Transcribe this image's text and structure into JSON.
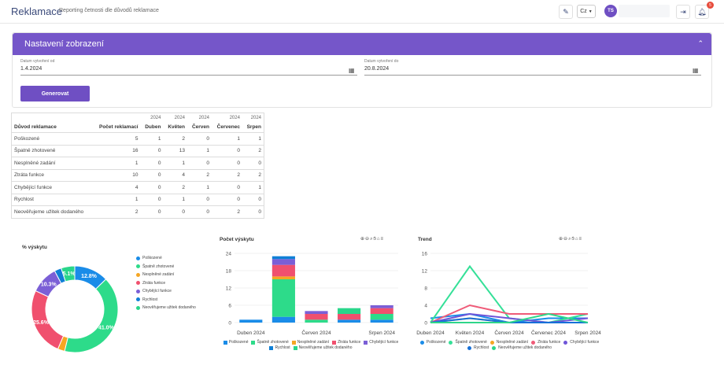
{
  "header": {
    "title": "Reklamace",
    "subtitle": "Reporting četnosti dle důvodů reklamace",
    "language": "Cz",
    "avatar_initials": "TS",
    "notification_count": "5"
  },
  "settings": {
    "title": "Nastavení zobrazení",
    "date_from_label": "Datum vytvoření od",
    "date_from_value": "1.4.2024",
    "date_to_label": "Datum vytvoření do",
    "date_to_value": "20.8.2024",
    "generate_label": "Generovat"
  },
  "table": {
    "headers": {
      "reason": "Důvod reklamace",
      "count": "Počet reklamací",
      "year": "2024",
      "months": [
        "Duben",
        "Květen",
        "Červen",
        "Červenec",
        "Srpen"
      ]
    },
    "rows": [
      {
        "reason": "Poškozené",
        "count": "5",
        "m": [
          "1",
          "2",
          "0",
          "1",
          "1"
        ]
      },
      {
        "reason": "Špatně zhotovené",
        "count": "16",
        "m": [
          "0",
          "13",
          "1",
          "0",
          "2"
        ]
      },
      {
        "reason": "Nesplněné zadání",
        "count": "1",
        "m": [
          "0",
          "1",
          "0",
          "0",
          "0"
        ]
      },
      {
        "reason": "Ztráta funkce",
        "count": "10",
        "m": [
          "0",
          "4",
          "2",
          "2",
          "2"
        ]
      },
      {
        "reason": "Chybějící funkce",
        "count": "4",
        "m": [
          "0",
          "2",
          "1",
          "0",
          "1"
        ]
      },
      {
        "reason": "Rychlost",
        "count": "1",
        "m": [
          "0",
          "1",
          "0",
          "0",
          "0"
        ]
      },
      {
        "reason": "Neověřujeme užitek dodaného",
        "count": "2",
        "m": [
          "0",
          "0",
          "0",
          "2",
          "0"
        ]
      }
    ]
  },
  "colors": {
    "accent": "#7556c9",
    "series": [
      "#1a8ce8",
      "#2ddb8a",
      "#f5a623",
      "#f0506e",
      "#7b5fd6",
      "#0f7fd6",
      "#29d68a"
    ]
  },
  "chart_data": [
    {
      "type": "pie",
      "title": "% výskytu",
      "categories": [
        "Poškozené",
        "Špatně zhotovené",
        "Nesplněné zadání",
        "Ztráta funkce",
        "Chybějící funkce",
        "Rychlost",
        "Neověřujeme užitek dodaného"
      ],
      "values": [
        12.8,
        41.0,
        2.6,
        25.6,
        10.3,
        2.6,
        5.1
      ],
      "data_labels": [
        "12.8%",
        "41.0%",
        "",
        "25.6%",
        "10.3%",
        "",
        "5.1%"
      ]
    },
    {
      "type": "bar",
      "stacked": true,
      "title": "Počet výskytu",
      "categories": [
        "Duben 2024",
        "Květen 2024",
        "Červen 2024",
        "Červenec 2024",
        "Srpen 2024"
      ],
      "x_tick_labels": [
        "Duben 2024",
        "Červen 2024",
        "Srpen 2024"
      ],
      "y_ticks": [
        "0",
        "6",
        "12",
        "18",
        "24"
      ],
      "ylim": [
        0,
        24
      ],
      "series": [
        {
          "name": "Poškozené",
          "values": [
            1,
            2,
            0,
            1,
            1
          ]
        },
        {
          "name": "Špatně zhotovené",
          "values": [
            0,
            13,
            1,
            0,
            2
          ]
        },
        {
          "name": "Nesplněné zadání",
          "values": [
            0,
            1,
            0,
            0,
            0
          ]
        },
        {
          "name": "Ztráta funkce",
          "values": [
            0,
            4,
            2,
            2,
            2
          ]
        },
        {
          "name": "Chybějící funkce",
          "values": [
            0,
            2,
            1,
            0,
            1
          ]
        },
        {
          "name": "Rychlost",
          "values": [
            0,
            1,
            0,
            0,
            0
          ]
        },
        {
          "name": "Neověřujeme užitek dodaného",
          "values": [
            0,
            0,
            0,
            2,
            0
          ]
        }
      ]
    },
    {
      "type": "line",
      "title": "Trend",
      "categories": [
        "Duben 2024",
        "Květen 2024",
        "Červen 2024",
        "Červenec 2024",
        "Srpen 2024"
      ],
      "y_ticks": [
        "0",
        "4",
        "8",
        "12",
        "16"
      ],
      "ylim": [
        0,
        16
      ],
      "series": [
        {
          "name": "Poškozené",
          "values": [
            1,
            2,
            0,
            1,
            1
          ]
        },
        {
          "name": "Špatně zhotovené",
          "values": [
            0,
            13,
            1,
            0,
            2
          ]
        },
        {
          "name": "Nesplněné zadání",
          "values": [
            0,
            1,
            0,
            0,
            0
          ]
        },
        {
          "name": "Ztráta funkce",
          "values": [
            0,
            4,
            2,
            2,
            2
          ]
        },
        {
          "name": "Chybějící funkce",
          "values": [
            0,
            2,
            1,
            0,
            1
          ]
        },
        {
          "name": "Rychlost",
          "values": [
            0,
            1,
            0,
            0,
            0
          ]
        },
        {
          "name": "Neověřujeme užitek dodaného",
          "values": [
            0,
            0,
            0,
            2,
            0
          ]
        }
      ]
    }
  ]
}
